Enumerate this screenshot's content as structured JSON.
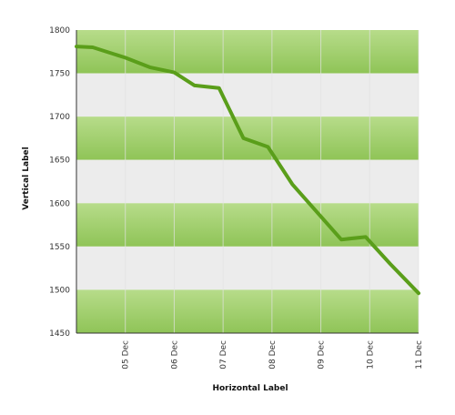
{
  "chart_data": {
    "type": "line",
    "title": "",
    "xlabel": "Horizontal Label",
    "ylabel": "Vertical Label",
    "x_tick_labels": [
      "05 Dec",
      "06 Dec",
      "07 Dec",
      "08 Dec",
      "09 Dec",
      "10 Dec",
      "11 Dec"
    ],
    "y_tick_labels": [
      "1450",
      "1500",
      "1550",
      "1600",
      "1650",
      "1700",
      "1750",
      "1800"
    ],
    "ylim": [
      1450,
      1800
    ],
    "xlim": [
      "04 Dec 00:00",
      "11 Dec 00:00"
    ],
    "grid": true,
    "legend": false,
    "colors": {
      "line": "#5a9e1a",
      "band_green_light": "#b7dc8a",
      "band_green_dark": "#8fc457",
      "band_gray": "#ececec",
      "gridline": "#e3e3e3",
      "axis": "#333333"
    },
    "series": [
      {
        "x": [
          "04 Dec 00:00",
          "04 Dec 08:00",
          "05 Dec 00:00",
          "05 Dec 12:00",
          "06 Dec 00:00",
          "06 Dec 10:00",
          "06 Dec 22:00",
          "07 Dec 10:00",
          "07 Dec 22:00",
          "08 Dec 10:00",
          "08 Dec 22:00",
          "09 Dec 10:00",
          "09 Dec 22:00",
          "10 Dec 10:00",
          "11 Dec 00:00"
        ],
        "values": [
          1781,
          1780,
          1768,
          1757,
          1751,
          1736,
          1733,
          1675,
          1665,
          1622,
          1590,
          1558,
          1561,
          1530,
          1496
        ]
      }
    ]
  }
}
